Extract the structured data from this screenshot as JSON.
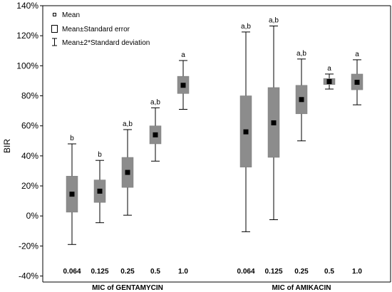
{
  "chart_data": {
    "type": "box",
    "title": "",
    "ylabel": "BIR",
    "ylim": [
      -0.44,
      1.4
    ],
    "yticks": [
      -0.4,
      -0.2,
      0.0,
      0.2,
      0.4,
      0.6,
      0.8,
      1.0,
      1.2,
      1.4
    ],
    "ytick_labels": [
      "-40%",
      "-20%",
      "0%",
      "20%",
      "40%",
      "60%",
      "80%",
      "100%",
      "120%",
      "140%"
    ],
    "grid": false,
    "legend_position": "top-left",
    "legend": {
      "mean": "Mean",
      "se": "Mean±Standard error",
      "sd": "Mean±2*Standard deviation"
    },
    "groups": [
      {
        "title": "MIC of GENTAMYCIN",
        "boxes": [
          {
            "category": "0.064",
            "mean": 0.145,
            "se_low": 0.025,
            "se_high": 0.265,
            "sd_low": -0.19,
            "sd_high": 0.48,
            "sig": "b"
          },
          {
            "category": "0.125",
            "mean": 0.165,
            "se_low": 0.09,
            "se_high": 0.24,
            "sd_low": -0.045,
            "sd_high": 0.37,
            "sig": "b"
          },
          {
            "category": "0.25",
            "mean": 0.29,
            "se_low": 0.19,
            "se_high": 0.39,
            "sd_low": 0.005,
            "sd_high": 0.575,
            "sig": "a,b"
          },
          {
            "category": "0.5",
            "mean": 0.54,
            "se_low": 0.48,
            "se_high": 0.6,
            "sd_low": 0.365,
            "sd_high": 0.72,
            "sig": "a,b"
          },
          {
            "category": "1.0",
            "mean": 0.87,
            "se_low": 0.815,
            "se_high": 0.93,
            "sd_low": 0.71,
            "sd_high": 1.035,
            "sig": "a"
          }
        ]
      },
      {
        "title": "MIC of AMIKACIN",
        "boxes": [
          {
            "category": "0.064",
            "mean": 0.56,
            "se_low": 0.325,
            "se_high": 0.8,
            "sd_low": -0.105,
            "sd_high": 1.225,
            "sig": "a,b"
          },
          {
            "category": "0.125",
            "mean": 0.62,
            "se_low": 0.39,
            "se_high": 0.855,
            "sd_low": -0.025,
            "sd_high": 1.265,
            "sig": "a,b"
          },
          {
            "category": "0.25",
            "mean": 0.775,
            "se_low": 0.68,
            "se_high": 0.87,
            "sd_low": 0.5,
            "sd_high": 1.045,
            "sig": "a,b"
          },
          {
            "category": "0.5",
            "mean": 0.895,
            "se_low": 0.875,
            "se_high": 0.915,
            "sd_low": 0.845,
            "sd_high": 0.945,
            "sig": "a"
          },
          {
            "category": "1.0",
            "mean": 0.89,
            "se_low": 0.84,
            "se_high": 0.945,
            "sd_low": 0.74,
            "sd_high": 1.04,
            "sig": "a"
          }
        ]
      }
    ]
  }
}
